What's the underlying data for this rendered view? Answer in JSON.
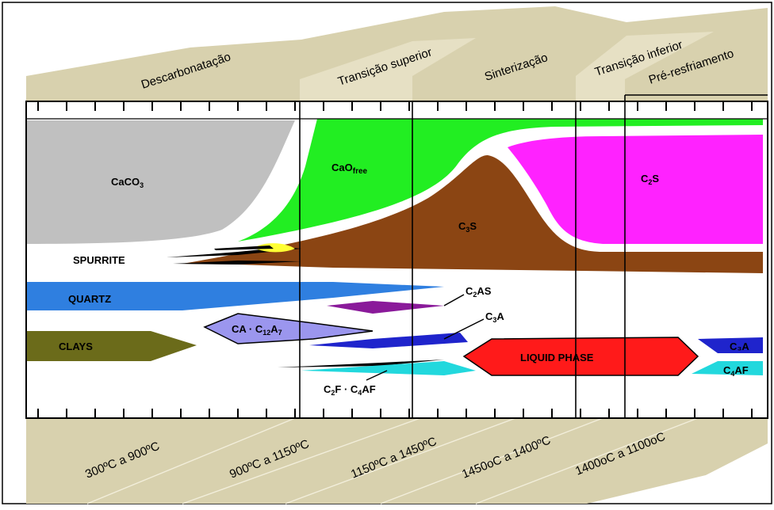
{
  "zones": [
    {
      "name": "Descarbonatação"
    },
    {
      "name": "Transição superior"
    },
    {
      "name": "Sinterização"
    },
    {
      "name": "Transição inferior"
    },
    {
      "name": "Pré-resfriamento"
    }
  ],
  "temperatures": [
    "300ºC a 900ºC",
    "900ºC a 1150ºC",
    "1150ºC a 1450ºC",
    "1450oC a 1400ºC",
    "1400oC a 1100oC"
  ],
  "phases": {
    "caco3": "CaCO",
    "caco3_sub": "3",
    "cao": "CaO",
    "cao_sub": "free",
    "c3s_c": "C",
    "c3s_sub": "3",
    "c3s_s": "S",
    "c2s_c": "C",
    "c2s_sub": "2",
    "c2s_s": "S",
    "spurrite": "SPURRITE",
    "quartz": "QUARTZ",
    "clays": "CLAYS",
    "ca_c12a7_a": "CA · C",
    "ca_c12a7_sub1": "12",
    "ca_c12a7_b": "A",
    "ca_c12a7_sub2": "7",
    "c2as_c": "C",
    "c2as_sub": "2",
    "c2as_rest": "AS",
    "c3a_c": "C",
    "c3a_sub": "3",
    "c3a_a": "A",
    "liquid_phase": "LIQUID  PHASE",
    "c2f_c": "C",
    "c2f_sub": "2",
    "c2f_f": "F · C",
    "c2f_sub2": "4",
    "c2f_af": "AF",
    "c4af_c": "C",
    "c4af_sub": "4",
    "c4af_af": "AF",
    "c3a_right": "C₃A"
  },
  "colors": {
    "band": "#d8d1ae",
    "band_light": "#e6e0c4",
    "caco3": "#c0c0c0",
    "cao": "#22ee22",
    "c3s": "#8b4513",
    "c2s": "#ff22ff",
    "spurrite_yellow": "#ffff33",
    "quartz": "#2f7fe0",
    "clays": "#6b6b1a",
    "ca_c12a7": "#9b96ee",
    "c2as": "#8a1a9a",
    "c3a": "#1f24cc",
    "liquid": "#ff1a1a",
    "c4af": "#22d8dd"
  }
}
